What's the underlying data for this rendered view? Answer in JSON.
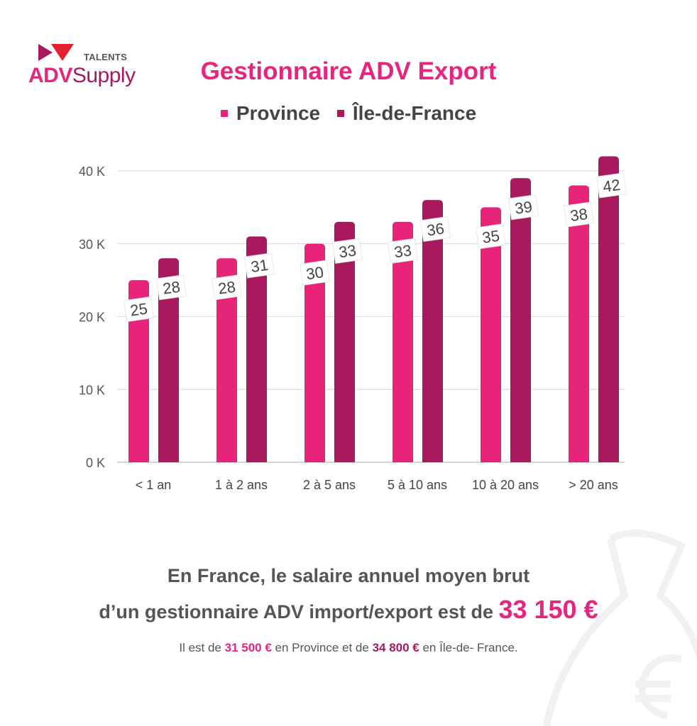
{
  "logo": {
    "talents": "TALENTS",
    "adv": "ADV",
    "supply": "Supply"
  },
  "title": "Gestionnaire ADV Export",
  "colors": {
    "province": "#e8247a",
    "idf": "#a8195e",
    "accent": "#e6267e"
  },
  "chart_data": {
    "type": "bar",
    "title": "Gestionnaire ADV Export",
    "categories": [
      "< 1 an",
      "1 à 2 ans",
      "2 à 5 ans",
      "5 à 10 ans",
      "10 à 20 ans",
      ">  20 ans"
    ],
    "series": [
      {
        "name": "Province",
        "values": [
          25,
          28,
          30,
          33,
          35,
          38
        ]
      },
      {
        "name": "Île-de-France",
        "values": [
          28,
          31,
          33,
          36,
          39,
          42
        ]
      }
    ],
    "yticks": [
      "0 K",
      "10 K",
      "20 K",
      "30 K",
      "40 K"
    ],
    "ytick_values": [
      0,
      10,
      20,
      30,
      40
    ],
    "ylim": [
      0,
      42
    ],
    "xlabel": "",
    "ylabel": "",
    "grid": true,
    "legend": "top-center"
  },
  "summary": {
    "line1": "En France, le salaire annuel moyen brut",
    "line2": "d’un gestionnaire ADV import/export est de ",
    "amount": "33 150 €",
    "detail_pre": "Il est de ",
    "province_amount": "31 500 €",
    "detail_mid": " en Province et de ",
    "idf_amount": "34 800 €",
    "detail_post": " en Île-de- France."
  }
}
